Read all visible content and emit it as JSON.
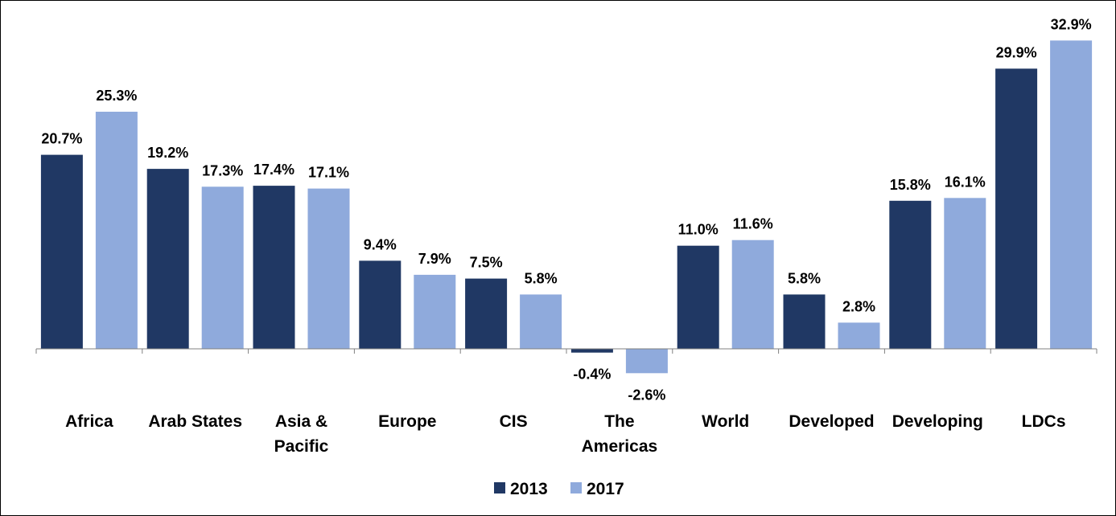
{
  "chart_data": {
    "type": "bar",
    "title": "",
    "xlabel": "",
    "ylabel": "",
    "categories": [
      [
        "Africa"
      ],
      [
        "Arab States"
      ],
      [
        "Asia &",
        "Pacific"
      ],
      [
        "Europe"
      ],
      [
        "CIS"
      ],
      [
        "The",
        "Americas"
      ],
      [
        "World"
      ],
      [
        "Developed"
      ],
      [
        "Developing"
      ],
      [
        "LDCs"
      ]
    ],
    "series": [
      {
        "name": "2013",
        "color": "#203864",
        "values": [
          20.7,
          19.2,
          17.4,
          9.4,
          7.5,
          -0.4,
          11.0,
          5.8,
          15.8,
          29.9
        ],
        "labels": [
          "20.7%",
          "19.2%",
          "17.4%",
          "9.4%",
          "7.5%",
          "-0.4%",
          "11.0%",
          "5.8%",
          "15.8%",
          "29.9%"
        ]
      },
      {
        "name": "2017",
        "color": "#8FAADC",
        "values": [
          25.3,
          17.3,
          17.1,
          7.9,
          5.8,
          -2.6,
          11.6,
          2.8,
          16.1,
          32.9
        ],
        "labels": [
          "25.3%",
          "17.3%",
          "17.1%",
          "7.9%",
          "5.8%",
          "-2.6%",
          "11.6%",
          "2.8%",
          "16.1%",
          "32.9%"
        ]
      }
    ],
    "ylim": [
      -3,
      33
    ],
    "grid": false,
    "legend_position": "bottom"
  }
}
